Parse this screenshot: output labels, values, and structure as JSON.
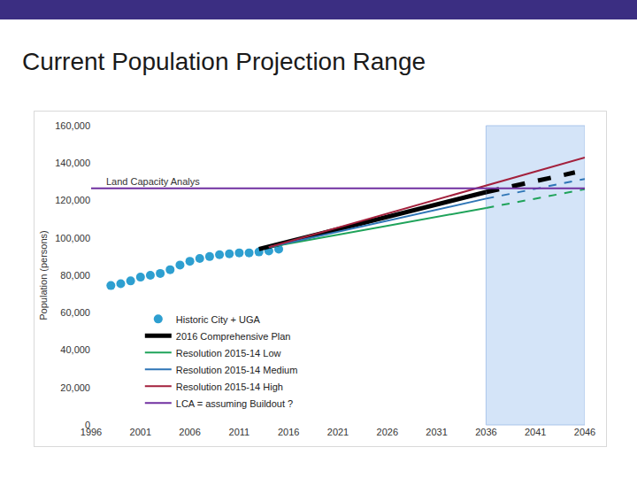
{
  "chart_data": {
    "type": "line",
    "title": "Current Population Projection Range",
    "y_label": "Population (persons)",
    "xlim": [
      1996,
      2046
    ],
    "xticks": [
      1996,
      2001,
      2006,
      2011,
      2016,
      2021,
      2026,
      2031,
      2036,
      2041,
      2046
    ],
    "ylim": [
      0,
      160000
    ],
    "yticks": [
      0,
      {
        "value": 20000,
        "label": "20,000"
      },
      {
        "value": 40000,
        "label": "40,000"
      },
      {
        "value": 60000,
        "label": "60,000"
      },
      {
        "value": 80000,
        "label": "80,000"
      },
      {
        "value": 100000,
        "label": "100,000"
      },
      {
        "value": 120000,
        "label": "120,000"
      },
      {
        "value": 140000,
        "label": "140,000"
      },
      {
        "value": 160000,
        "label": "160,000"
      }
    ],
    "grid": false,
    "legend": "lower left",
    "highlight_x": [
      2036,
      2046
    ],
    "annotations": [
      {
        "text": "Land Capacity Analys",
        "x": 1997.3,
        "y": 126500
      }
    ],
    "series": [
      {
        "name": "Historic City + UGA",
        "type": "scatter",
        "marker": "circle",
        "color": "#2e9fd0",
        "x": [
          1998,
          1999,
          2000,
          2001,
          2002,
          2003,
          2004,
          2005,
          2006,
          2007,
          2008,
          2009,
          2010,
          2011,
          2012,
          2013,
          2014,
          2015
        ],
        "values": [
          74500,
          75500,
          77000,
          79000,
          80000,
          81000,
          83000,
          85500,
          87500,
          89000,
          90000,
          91000,
          91500,
          92000,
          92000,
          92500,
          93000,
          94000
        ]
      },
      {
        "name": "2016 Comprehensive Plan",
        "type": "line",
        "line_style": "dashed",
        "color": "#000000",
        "x": [
          2013,
          2036,
          2045
        ],
        "values": [
          94000,
          124500,
          135000
        ]
      },
      {
        "name": "Resolution 2015-14 Low",
        "type": "line",
        "line_style": "dashed",
        "color": "#1fa35a",
        "x": [
          2014,
          2036,
          2046
        ],
        "values": [
          95000,
          116000,
          126000
        ]
      },
      {
        "name": "Resolution 2015-14 Medium",
        "type": "line",
        "line_style": "dashed",
        "color": "#2e75b6",
        "x": [
          2014,
          2036,
          2046
        ],
        "values": [
          95000,
          121000,
          131500
        ]
      },
      {
        "name": "Resolution 2015-14 High",
        "type": "line",
        "line_style": "solid",
        "color": "#a3203c",
        "x": [
          2014,
          2036,
          2046
        ],
        "values": [
          95000,
          128000,
          143000
        ]
      },
      {
        "name": "LCA = assuming Buildout ?",
        "type": "line",
        "line_style": "solid",
        "color": "#7030a0",
        "x": [
          1996,
          2046
        ],
        "values": [
          126500,
          126500
        ]
      }
    ]
  }
}
